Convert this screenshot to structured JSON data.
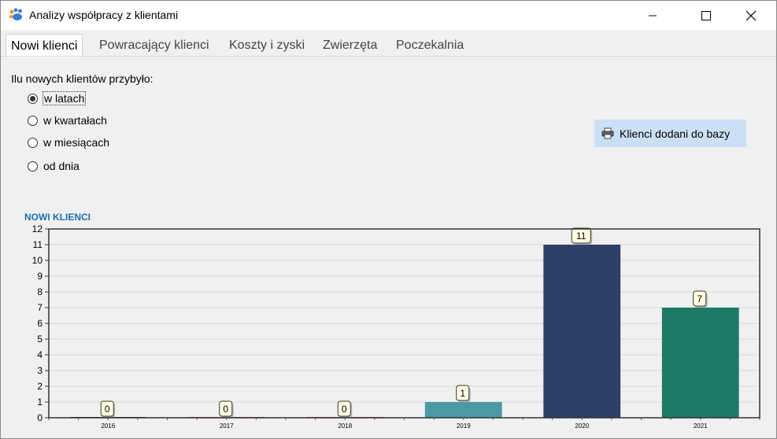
{
  "window": {
    "title": "Analizy współpracy z klientami",
    "buttons": [
      "minimize",
      "maximize",
      "close"
    ]
  },
  "tabs": [
    {
      "label": "Nowi klienci",
      "active": true
    },
    {
      "label": "Powracający klienci",
      "active": false
    },
    {
      "label": "Koszty i zyski",
      "active": false
    },
    {
      "label": "Zwierzęta",
      "active": false
    },
    {
      "label": "Poczekalnia",
      "active": false
    }
  ],
  "question": "Ilu nowych klientów przybyło:",
  "radios": [
    {
      "label": "w latach",
      "checked": true
    },
    {
      "label": "w kwartałach",
      "checked": false
    },
    {
      "label": "w miesiącach",
      "checked": false
    },
    {
      "label": "od dnia",
      "checked": false
    }
  ],
  "action_button": {
    "label": "Klienci dodani do bazy",
    "icon": "printer-icon"
  },
  "colors": {
    "accent_blue": "#1f6fb0",
    "button_bg": "#cce0f5",
    "bar_2019": "#4a9aa5",
    "bar_2020": "#2e3f68",
    "bar_2021": "#1e7a68",
    "label_box": "#ffffe1"
  },
  "chart_data": {
    "type": "bar",
    "title": "NOWI KLIENCI",
    "categories": [
      "2016",
      "2017",
      "2018",
      "2019",
      "2020",
      "2021"
    ],
    "values": [
      0,
      0,
      0,
      1,
      11,
      7
    ],
    "bar_colors": [
      "#2e3f68",
      "#c0392b",
      "#c0392b",
      "#4a9aa5",
      "#2e3f68",
      "#1e7a68"
    ],
    "ylim": [
      0,
      12
    ],
    "yticks": [
      0,
      1,
      2,
      3,
      4,
      5,
      6,
      7,
      8,
      9,
      10,
      11,
      12
    ],
    "data_labels": true,
    "grid": true,
    "xlabel": "",
    "ylabel": ""
  }
}
